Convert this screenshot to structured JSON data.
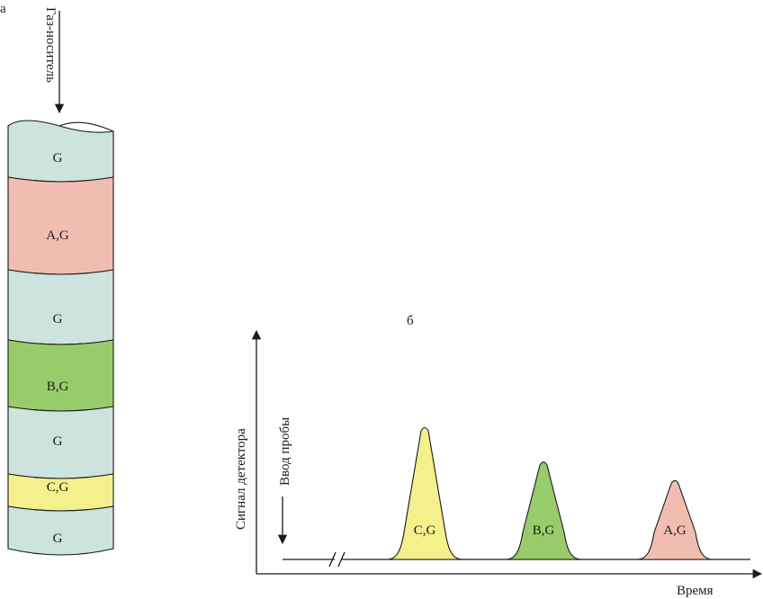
{
  "panel_a_label": "а",
  "panel_b_label": "б",
  "carrier_gas_label": "Газ-носитель",
  "zones": [
    {
      "label": "G",
      "color": "#cde3dd"
    },
    {
      "label": "A,G",
      "color": "#f2bdb1"
    },
    {
      "label": "G",
      "color": "#cde3dd"
    },
    {
      "label": "B,G",
      "color": "#98cc6a"
    },
    {
      "label": "G",
      "color": "#cde3dd"
    },
    {
      "label": "C,G",
      "color": "#f4f08c"
    },
    {
      "label": "G",
      "color": "#cde3dd"
    }
  ],
  "chromatogram": {
    "y_axis_label": "Сигнал детектора",
    "x_axis_label": "Время",
    "injection_label": "Ввод пробы",
    "peaks": [
      {
        "label": "C,G",
        "color": "#f4f08c",
        "relative_height": 1.0
      },
      {
        "label": "B,G",
        "color": "#98cc6a",
        "relative_height": 0.74
      },
      {
        "label": "A,G",
        "color": "#f2bdb1",
        "relative_height": 0.6
      }
    ]
  }
}
